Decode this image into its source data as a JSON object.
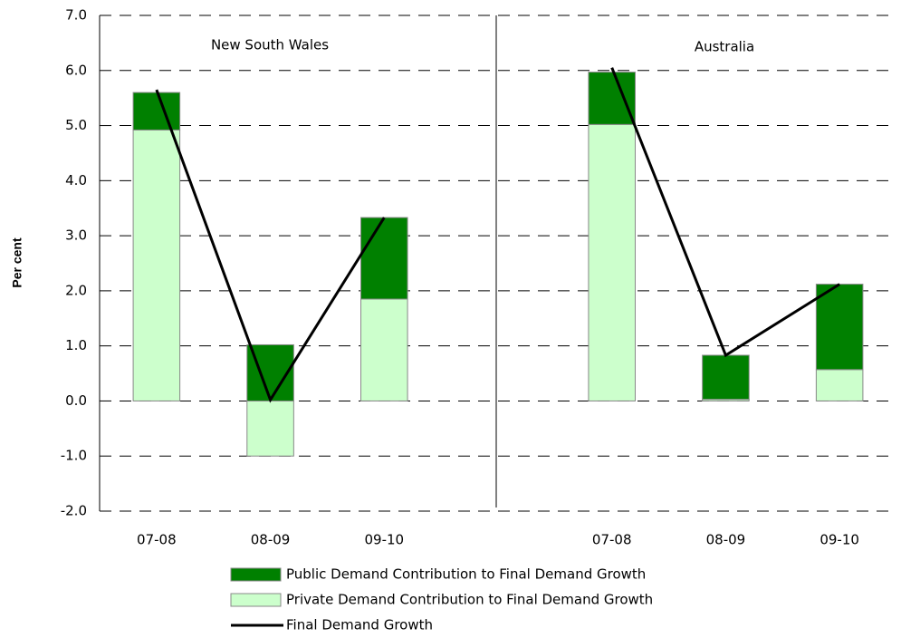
{
  "chart_data": {
    "type": "bar",
    "stacked": true,
    "y_label": "Per cent",
    "annotations": [
      "New South Wales",
      "Australia"
    ],
    "categories": [
      "07-08",
      "08-09",
      "09-10",
      null,
      "07-08",
      "08-09",
      "09-10"
    ],
    "series": [
      {
        "name": "Public Demand Contribution to Final Demand Growth",
        "type": "bar",
        "color": "#008000",
        "values": [
          0.68,
          1.02,
          1.48,
          null,
          0.95,
          0.8,
          1.55
        ]
      },
      {
        "name": "Private Demand Contribution to Final Demand Growth",
        "type": "bar",
        "color": "#ccffcc",
        "values": [
          4.92,
          -1.0,
          1.85,
          null,
          5.02,
          0.03,
          0.57
        ]
      },
      {
        "name": "Final Demand Growth",
        "type": "line",
        "color": "#000000",
        "values": [
          5.65,
          0.02,
          3.33,
          null,
          6.05,
          0.83,
          2.12
        ]
      }
    ],
    "ylim": [
      -2,
      7
    ],
    "yticks": [
      {
        "value": -2,
        "label": "-2.0"
      },
      {
        "value": -1,
        "label": "-1.0"
      },
      {
        "value": 0,
        "label": "0.0"
      },
      {
        "value": 1,
        "label": "1.0"
      },
      {
        "value": 2,
        "label": "2.0"
      },
      {
        "value": 3,
        "label": "3.0"
      },
      {
        "value": 4,
        "label": "4.0"
      },
      {
        "value": 5,
        "label": "5.0"
      },
      {
        "value": 6,
        "label": "6.0"
      },
      {
        "value": 7,
        "label": "7.0"
      }
    ],
    "grid": true
  }
}
